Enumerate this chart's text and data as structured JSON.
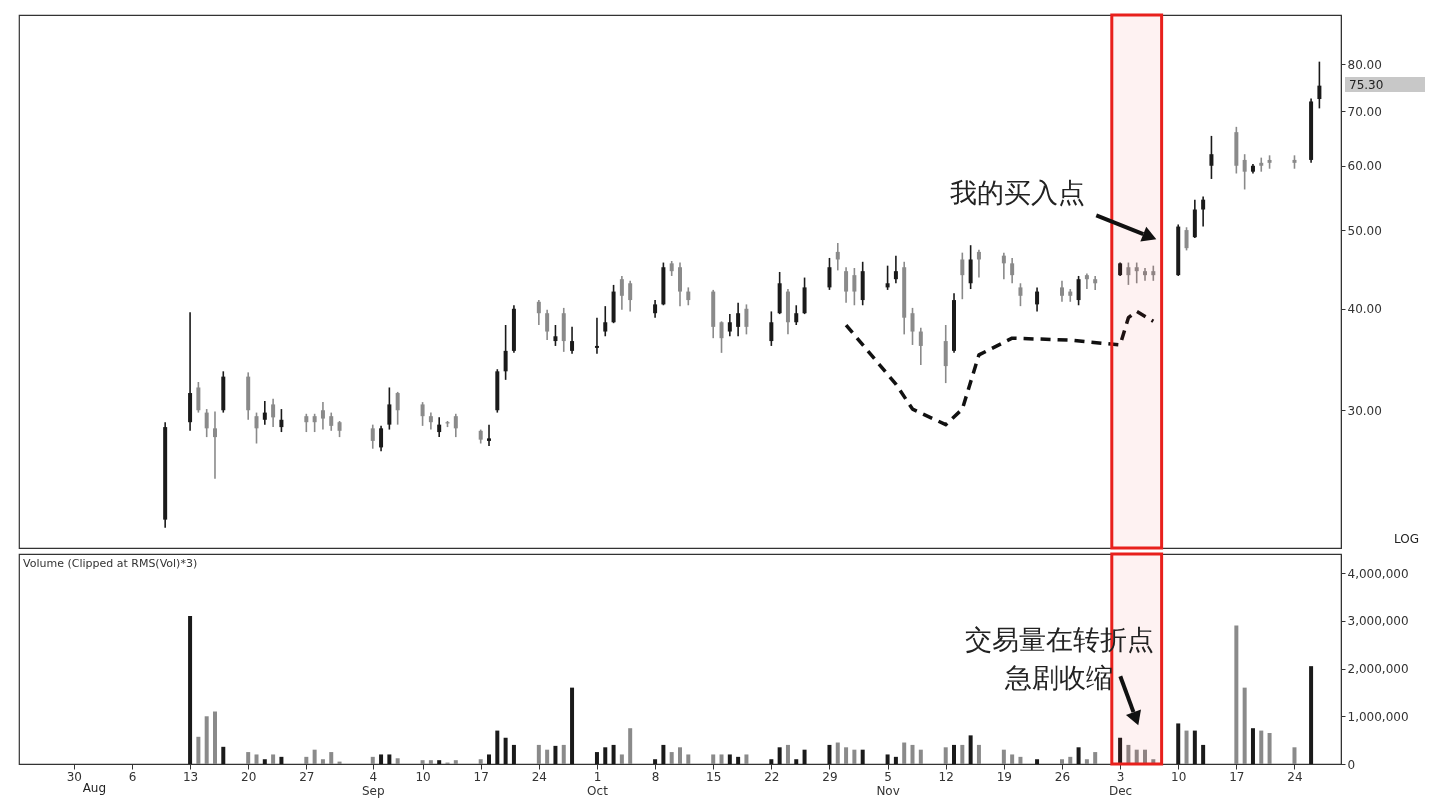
{
  "chart_data": [
    {
      "type": "candlestick",
      "log": true,
      "tick_labels": "y",
      "line_style": "dashed",
      "x": [
        "--08-10",
        "--08-13",
        "--08-14",
        "--08-15",
        "--08-16",
        "--08-17",
        "--08-20",
        "--08-21",
        "--08-22",
        "--08-23",
        "--08-24",
        "--08-27",
        "--08-28",
        "--08-29",
        "--08-30",
        "--08-31",
        "--09-04",
        "--09-05",
        "--09-06",
        "--09-07",
        "--09-10",
        "--09-11",
        "--09-12",
        "--09-13",
        "--09-14",
        "--09-17",
        "--09-18",
        "--09-19",
        "--09-20",
        "--09-21",
        "--09-24",
        "--09-25",
        "--09-26",
        "--09-27",
        "--09-28",
        "--10-01",
        "--10-02",
        "--10-03",
        "--10-04",
        "--10-05",
        "--10-08",
        "--10-09",
        "--10-10",
        "--10-11",
        "--10-12",
        "--10-15",
        "--10-16",
        "--10-17",
        "--10-18",
        "--10-19",
        "--10-22",
        "--10-23",
        "--10-24",
        "--10-25",
        "--10-26",
        "--10-29",
        "--10-30",
        "--10-31",
        "--11-01",
        "--11-02",
        "--11-05",
        "--11-06",
        "--11-07",
        "--11-08",
        "--11-09",
        "--11-12",
        "--11-13",
        "--11-14",
        "--11-15",
        "--11-16",
        "--11-19",
        "--11-20",
        "--11-21",
        "--11-23",
        "--11-26",
        "--11-27",
        "--11-28",
        "--11-29",
        "--11-30",
        "--12-03",
        "--12-04",
        "--12-05",
        "--12-06",
        "--12-07",
        "--12-10",
        "--12-11",
        "--12-12",
        "--12-13",
        "--12-14",
        "--12-17",
        "--12-18",
        "--12-19",
        "--12-20",
        "--12-21",
        "--12-24",
        "--12-26",
        "--12-27"
      ],
      "ohlc": [
        [
          22,
          29,
          21.5,
          28.6
        ],
        [
          29,
          39.6,
          28.3,
          31.5
        ],
        [
          32,
          32.5,
          29.8,
          30
        ],
        [
          29.8,
          30.1,
          27.8,
          28.5
        ],
        [
          28.5,
          29.9,
          24.7,
          27.8
        ],
        [
          30,
          33.5,
          29.8,
          33
        ],
        [
          33,
          33.4,
          29.2,
          30
        ],
        [
          29.5,
          29.8,
          27.3,
          28.5
        ],
        [
          29.2,
          30.8,
          28.8,
          29.8
        ],
        [
          30.5,
          31,
          28.6,
          29.4
        ],
        [
          28.6,
          30.1,
          28.2,
          29.2
        ],
        [
          29.5,
          29.7,
          28.2,
          29
        ],
        [
          29.5,
          29.7,
          28.2,
          29
        ],
        [
          30,
          30.7,
          28.4,
          29.3
        ],
        [
          29.5,
          29.8,
          28.3,
          28.7
        ],
        [
          29,
          29.1,
          27.8,
          28.3
        ],
        [
          28.5,
          28.8,
          26.9,
          27.5
        ],
        [
          27,
          28.7,
          26.7,
          28.5
        ],
        [
          28.8,
          32,
          28.4,
          30.5
        ],
        [
          31.5,
          31.6,
          28.8,
          30
        ],
        [
          30.5,
          30.7,
          28.7,
          29.5
        ],
        [
          29.5,
          29.8,
          28.4,
          29
        ],
        [
          28.2,
          29.4,
          27.8,
          28.8
        ],
        [
          29,
          29.1,
          28.6,
          28.9
        ],
        [
          29.5,
          29.7,
          27.8,
          28.5
        ],
        [
          28.3,
          28.4,
          27.3,
          27.6
        ],
        [
          27.5,
          28.8,
          27.1,
          27.7
        ],
        [
          30,
          33.7,
          29.8,
          33.5
        ],
        [
          33.5,
          38.2,
          32.7,
          35.5
        ],
        [
          35.5,
          40.4,
          35.3,
          40
        ],
        [
          40.8,
          41,
          38.2,
          39.5
        ],
        [
          39.5,
          39.9,
          36.6,
          37.5
        ],
        [
          36.5,
          38.2,
          36,
          37
        ],
        [
          39.5,
          40.1,
          35.4,
          36.5
        ],
        [
          35.5,
          38,
          35.2,
          36.5
        ],
        [
          35.8,
          39,
          35.2,
          36
        ],
        [
          37.5,
          40.3,
          37,
          38.5
        ],
        [
          38.5,
          42.8,
          38.4,
          42
        ],
        [
          43.5,
          43.9,
          39.9,
          41.5
        ],
        [
          43,
          43.3,
          39.7,
          41
        ],
        [
          39.5,
          41,
          39,
          40.5
        ],
        [
          40.5,
          45.6,
          40.4,
          45
        ],
        [
          45.5,
          45.8,
          43.9,
          44.5
        ],
        [
          45,
          45.6,
          40.3,
          42
        ],
        [
          42,
          42.5,
          40.4,
          41
        ],
        [
          42,
          42.2,
          36.8,
          38
        ],
        [
          38.5,
          38.6,
          35.3,
          36.8
        ],
        [
          37.5,
          39.4,
          37,
          38.5
        ],
        [
          38,
          40.7,
          37,
          39.5
        ],
        [
          40,
          40.5,
          37.2,
          38
        ],
        [
          36.5,
          39.7,
          36,
          38.5
        ],
        [
          39.5,
          44.4,
          39.4,
          43
        ],
        [
          42,
          42.3,
          37.2,
          38.5
        ],
        [
          38.5,
          40.4,
          38.2,
          39.5
        ],
        [
          39.5,
          43.7,
          39.4,
          42.5
        ],
        [
          42.5,
          46.2,
          42.2,
          45
        ],
        [
          47,
          48.2,
          44.6,
          46
        ],
        [
          44.5,
          45,
          40.7,
          42
        ],
        [
          44,
          44.9,
          40.4,
          42
        ],
        [
          41,
          45.7,
          40.4,
          44.5
        ],
        [
          42.5,
          45.2,
          42.2,
          43
        ],
        [
          43.5,
          46.5,
          43,
          44.5
        ],
        [
          45,
          45.7,
          37.2,
          39
        ],
        [
          39.5,
          40.1,
          36.1,
          37.5
        ],
        [
          37.5,
          37.9,
          34.1,
          36
        ],
        [
          36.5,
          38.2,
          32.4,
          34
        ],
        [
          35.5,
          41.8,
          35.3,
          41
        ],
        [
          46,
          46.9,
          41.1,
          44
        ],
        [
          43,
          47.9,
          42.3,
          46
        ],
        [
          47,
          47.3,
          43.7,
          46
        ],
        [
          46.5,
          46.9,
          43.5,
          45.5
        ],
        [
          45.5,
          46.2,
          43,
          44
        ],
        [
          42.5,
          43,
          40.3,
          41.5
        ],
        [
          40.5,
          42.5,
          39.7,
          42
        ],
        [
          42.5,
          43.3,
          40.8,
          41.5
        ],
        [
          42,
          42.3,
          40.8,
          41.5
        ],
        [
          41,
          43.9,
          40.4,
          43.5
        ],
        [
          44,
          44.2,
          42.3,
          43.5
        ],
        [
          43.5,
          43.9,
          42.2,
          43
        ],
        [
          44,
          45.6,
          43.9,
          45.5
        ],
        [
          45,
          45.6,
          42.8,
          44
        ],
        [
          45,
          45.6,
          43,
          44.5
        ],
        [
          44.5,
          44.9,
          43.3,
          44
        ],
        [
          44.5,
          45.2,
          43.3,
          44
        ],
        [
          44,
          50.8,
          43.9,
          50.5
        ],
        [
          50,
          50.4,
          47.2,
          47.5
        ],
        [
          49,
          54.5,
          48.9,
          53
        ],
        [
          53,
          55,
          50.5,
          54.5
        ],
        [
          60,
          65.3,
          57.8,
          62
        ],
        [
          66,
          67,
          58.7,
          60
        ],
        [
          61,
          62,
          56.1,
          59
        ],
        [
          59,
          60.3,
          58.7,
          60
        ],
        [
          60.5,
          61.4,
          59,
          60
        ],
        [
          61,
          61.8,
          59.5,
          60.5
        ],
        [
          61,
          61.8,
          59.5,
          60.5
        ],
        [
          61,
          72.6,
          60.5,
          72
        ],
        [
          72.5,
          80.6,
          70.6,
          75.3
        ]
      ],
      "colors": [
        "#1a1a1a",
        "#1a1a1a",
        "#8a8a8a",
        "#8a8a8a",
        "#8a8a8a",
        "#1a1a1a",
        "#8a8a8a",
        "#8a8a8a",
        "#1a1a1a",
        "#8a8a8a",
        "#1a1a1a",
        "#8a8a8a",
        "#8a8a8a",
        "#8a8a8a",
        "#8a8a8a",
        "#8a8a8a",
        "#8a8a8a",
        "#1a1a1a",
        "#1a1a1a",
        "#8a8a8a",
        "#8a8a8a",
        "#8a8a8a",
        "#1a1a1a",
        "#8a8a8a",
        "#8a8a8a",
        "#8a8a8a",
        "#1a1a1a",
        "#1a1a1a",
        "#1a1a1a",
        "#1a1a1a",
        "#8a8a8a",
        "#8a8a8a",
        "#1a1a1a",
        "#8a8a8a",
        "#1a1a1a",
        "#1a1a1a",
        "#1a1a1a",
        "#1a1a1a",
        "#8a8a8a",
        "#8a8a8a",
        "#1a1a1a",
        "#1a1a1a",
        "#8a8a8a",
        "#8a8a8a",
        "#8a8a8a",
        "#8a8a8a",
        "#8a8a8a",
        "#1a1a1a",
        "#1a1a1a",
        "#8a8a8a",
        "#1a1a1a",
        "#1a1a1a",
        "#8a8a8a",
        "#1a1a1a",
        "#1a1a1a",
        "#1a1a1a",
        "#8a8a8a",
        "#8a8a8a",
        "#8a8a8a",
        "#1a1a1a",
        "#1a1a1a",
        "#1a1a1a",
        "#8a8a8a",
        "#8a8a8a",
        "#8a8a8a",
        "#8a8a8a",
        "#1a1a1a",
        "#8a8a8a",
        "#1a1a1a",
        "#8a8a8a",
        "#8a8a8a",
        "#8a8a8a",
        "#8a8a8a",
        "#1a1a1a",
        "#8a8a8a",
        "#8a8a8a",
        "#1a1a1a",
        "#8a8a8a",
        "#8a8a8a",
        "#1a1a1a",
        "#8a8a8a",
        "#8a8a8a",
        "#8a8a8a",
        "#8a8a8a",
        "#1a1a1a",
        "#8a8a8a",
        "#1a1a1a",
        "#1a1a1a",
        "#1a1a1a",
        "#8a8a8a",
        "#8a8a8a",
        "#1a1a1a",
        "#8a8a8a",
        "#8a8a8a",
        "#8a8a8a",
        "#1a1a1a",
        "#1a1a1a"
      ],
      "series": [
        {
          "type": "line",
          "color": "#111111",
          "x": [
            "--10-31",
            "--11-06",
            "--11-08",
            "--11-12",
            "--11-14",
            "--11-16",
            "--11-20",
            "--11-27",
            "--12-03",
            "--12-04",
            "--12-05",
            "--12-07"
          ],
          "values": [
            38.2,
            32.3,
            30.1,
            28.8,
            30.1,
            35.1,
            36.8,
            36.6,
            36.1,
            39,
            39.7,
            38.6
          ]
        }
      ],
      "xlim": [
        "--07-24",
        "--12-29"
      ],
      "ylim": [
        20.3,
        92
      ],
      "bands": [
        {
          "axis": "x",
          "from": "--12-02",
          "to": "--12-08",
          "color": "#e8201c"
        }
      ],
      "yticks": [
        {
          "value": 30,
          "label": "30.00"
        },
        {
          "value": 40,
          "label": "40.00"
        },
        {
          "value": 50,
          "label": "50.00"
        },
        {
          "value": 60,
          "label": "60.00"
        },
        {
          "value": 70,
          "label": "70.00"
        },
        {
          "value": 80,
          "label": "80.00"
        }
      ],
      "annotations": [
        "LOG",
        "75.30",
        "我的买入点"
      ]
    },
    {
      "type": "bar",
      "title": "Volume (Clipped at RMS(Vol)*3)",
      "x": [
        "--08-13",
        "--08-14",
        "--08-15",
        "--08-16",
        "--08-17",
        "--08-20",
        "--08-21",
        "--08-22",
        "--08-23",
        "--08-24",
        "--08-27",
        "--08-28",
        "--08-29",
        "--08-30",
        "--08-31",
        "--09-04",
        "--09-05",
        "--09-06",
        "--09-07",
        "--09-10",
        "--09-11",
        "--09-12",
        "--09-13",
        "--09-14",
        "--09-17",
        "--09-18",
        "--09-19",
        "--09-20",
        "--09-21",
        "--09-24",
        "--09-25",
        "--09-26",
        "--09-27",
        "--09-28",
        "--10-01",
        "--10-02",
        "--10-03",
        "--10-04",
        "--10-05",
        "--10-08",
        "--10-09",
        "--10-10",
        "--10-11",
        "--10-12",
        "--10-15",
        "--10-16",
        "--10-17",
        "--10-18",
        "--10-19",
        "--10-22",
        "--10-23",
        "--10-24",
        "--10-25",
        "--10-26",
        "--10-29",
        "--10-30",
        "--10-31",
        "--11-01",
        "--11-02",
        "--11-05",
        "--11-06",
        "--11-07",
        "--11-08",
        "--11-09",
        "--11-12",
        "--11-13",
        "--11-14",
        "--11-15",
        "--11-16",
        "--11-19",
        "--11-20",
        "--11-21",
        "--11-23",
        "--11-26",
        "--11-27",
        "--11-28",
        "--11-29",
        "--11-30",
        "--12-03",
        "--12-04",
        "--12-05",
        "--12-06",
        "--12-07",
        "--12-10",
        "--12-11",
        "--12-12",
        "--12-13",
        "--12-14",
        "--12-17",
        "--12-18",
        "--12-19",
        "--12-20",
        "--12-21",
        "--12-24",
        "--12-26"
      ],
      "values": [
        3100000,
        570000,
        1000000,
        1100000,
        360000,
        250000,
        200000,
        100000,
        200000,
        150000,
        150000,
        300000,
        100000,
        250000,
        50000,
        150000,
        200000,
        200000,
        120000,
        80000,
        80000,
        80000,
        30000,
        80000,
        100000,
        200000,
        700000,
        550000,
        400000,
        400000,
        300000,
        380000,
        400000,
        1600000,
        250000,
        350000,
        400000,
        200000,
        750000,
        100000,
        400000,
        250000,
        350000,
        200000,
        200000,
        200000,
        200000,
        150000,
        200000,
        100000,
        350000,
        400000,
        100000,
        300000,
        400000,
        450000,
        350000,
        300000,
        300000,
        200000,
        150000,
        450000,
        400000,
        300000,
        350000,
        400000,
        400000,
        600000,
        400000,
        300000,
        200000,
        150000,
        100000,
        100000,
        150000,
        350000,
        100000,
        250000,
        550000,
        400000,
        300000,
        300000,
        100000,
        850000,
        700000,
        700000,
        400000,
        null,
        2900000,
        1600000,
        750000,
        700000,
        650000,
        350000,
        2050000
      ],
      "colors": [
        "#1a1a1a",
        "#8a8a8a",
        "#8a8a8a",
        "#8a8a8a",
        "#1a1a1a",
        "#8a8a8a",
        "#8a8a8a",
        "#1a1a1a",
        "#8a8a8a",
        "#1a1a1a",
        "#8a8a8a",
        "#8a8a8a",
        "#8a8a8a",
        "#8a8a8a",
        "#8a8a8a",
        "#8a8a8a",
        "#1a1a1a",
        "#1a1a1a",
        "#8a8a8a",
        "#8a8a8a",
        "#8a8a8a",
        "#1a1a1a",
        "#8a8a8a",
        "#8a8a8a",
        "#8a8a8a",
        "#1a1a1a",
        "#1a1a1a",
        "#1a1a1a",
        "#1a1a1a",
        "#8a8a8a",
        "#8a8a8a",
        "#1a1a1a",
        "#8a8a8a",
        "#1a1a1a",
        "#1a1a1a",
        "#1a1a1a",
        "#1a1a1a",
        "#8a8a8a",
        "#8a8a8a",
        "#1a1a1a",
        "#1a1a1a",
        "#8a8a8a",
        "#8a8a8a",
        "#8a8a8a",
        "#8a8a8a",
        "#8a8a8a",
        "#1a1a1a",
        "#1a1a1a",
        "#8a8a8a",
        "#1a1a1a",
        "#1a1a1a",
        "#8a8a8a",
        "#1a1a1a",
        "#1a1a1a",
        "#1a1a1a",
        "#8a8a8a",
        "#8a8a8a",
        "#8a8a8a",
        "#1a1a1a",
        "#1a1a1a",
        "#1a1a1a",
        "#8a8a8a",
        "#8a8a8a",
        "#8a8a8a",
        "#8a8a8a",
        "#1a1a1a",
        "#8a8a8a",
        "#1a1a1a",
        "#8a8a8a",
        "#8a8a8a",
        "#8a8a8a",
        "#8a8a8a",
        "#1a1a1a",
        "#8a8a8a",
        "#8a8a8a",
        "#1a1a1a",
        "#8a8a8a",
        "#8a8a8a",
        "#1a1a1a",
        "#8a8a8a",
        "#8a8a8a",
        "#8a8a8a",
        "#8a8a8a",
        "#1a1a1a",
        "#8a8a8a",
        "#1a1a1a",
        "#1a1a1a",
        "#1a1a1a",
        "#8a8a8a",
        "#8a8a8a",
        "#1a1a1a",
        "#8a8a8a",
        "#8a8a8a",
        "#8a8a8a",
        "#1a1a1a"
      ],
      "xlim": [
        "--07-24",
        "--12-29"
      ],
      "xticks": [
        {
          "value": "--07-30",
          "label": "30"
        },
        {
          "value": "--08-06",
          "label": "6"
        },
        {
          "value": "--08-13",
          "label": "13"
        },
        {
          "value": "--08-20",
          "label": "20"
        },
        {
          "value": "--08-27",
          "label": "27"
        },
        {
          "value": "--09-04",
          "label": "4\nSep"
        },
        {
          "value": "--09-10",
          "label": "10"
        },
        {
          "value": "--09-17",
          "label": "17"
        },
        {
          "value": "--09-24",
          "label": "24"
        },
        {
          "value": "--10-01",
          "label": "1\nOct"
        },
        {
          "value": "--10-08",
          "label": "8"
        },
        {
          "value": "--10-15",
          "label": "15"
        },
        {
          "value": "--10-22",
          "label": "22"
        },
        {
          "value": "--10-29",
          "label": "29"
        },
        {
          "value": "--11-05",
          "label": "5\nNov"
        },
        {
          "value": "--11-12",
          "label": "12"
        },
        {
          "value": "--11-19",
          "label": "19"
        },
        {
          "value": "--11-26",
          "label": "26"
        },
        {
          "value": "--12-03",
          "label": "3\nDec"
        },
        {
          "value": "--12-10",
          "label": "10"
        },
        {
          "value": "--12-17",
          "label": "17"
        },
        {
          "value": "--12-24",
          "label": "24"
        }
      ],
      "ylim": [
        0,
        4400000
      ],
      "yticks": [
        0,
        {
          "value": 1000000,
          "label": "1,000,000"
        },
        {
          "value": 2000000,
          "label": "2,000,000"
        },
        {
          "value": 3000000,
          "label": "3,000,000"
        },
        {
          "value": 4000000,
          "label": "4,000,000"
        }
      ],
      "bands": [
        {
          "axis": "x",
          "from": "--12-02",
          "to": "--12-08",
          "color": "#e8201c"
        }
      ],
      "annotations": [
        "交易量在转折点急剧收缩",
        "Aug"
      ]
    }
  ]
}
